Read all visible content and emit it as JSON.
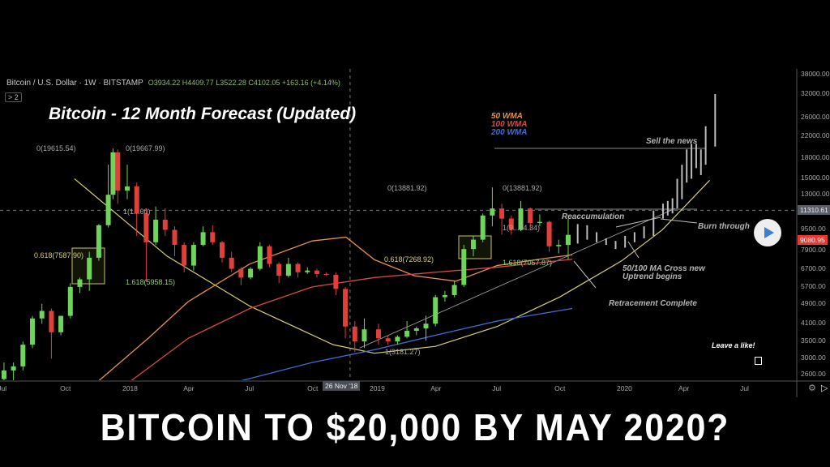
{
  "header": {
    "symbol": "Bitcoin / U.S. Dollar · 1W · BITSTAMP",
    "ohlc": "O3934.22 H4409.77 L3522.28 C4102.05 +163.16 (+4.14%)",
    "indicators_badge": "> 2"
  },
  "overlay": {
    "title": "Bitcoin - 12 Month Forecast (Updated)",
    "caption": "BITCOIN TO $20,000 BY MAY 2020?",
    "like_prompt": "Leave a like!"
  },
  "chart_data": {
    "type": "candlestick",
    "title": "Bitcoin - 12 Month Forecast (Updated)",
    "y_scale": "log",
    "ylim": [
      2400,
      38000
    ],
    "xlim": [
      "2017-07-01",
      "2020-08-15"
    ],
    "grid": false,
    "legend": "top-center",
    "y_ticks": [
      "38000.00",
      "32000.00",
      "26000.00",
      "22000.00",
      "18000.00",
      "15000.00",
      "13000.00",
      "9500.00",
      "7900.00",
      "6700.00",
      "5700.00",
      "4900.00",
      "4100.00",
      "3500.00",
      "3000.00",
      "2600.00"
    ],
    "y_tick_values": [
      38000,
      32000,
      26000,
      22000,
      18000,
      15000,
      13000,
      9500,
      7900,
      6700,
      5700,
      4900,
      4100,
      3500,
      3000,
      2600
    ],
    "x_ticks": [
      {
        "label": "Jul",
        "date": "2017-07-01"
      },
      {
        "label": "Oct",
        "date": "2017-10-01"
      },
      {
        "label": "2018",
        "date": "2018-01-01"
      },
      {
        "label": "Apr",
        "date": "2018-04-01"
      },
      {
        "label": "Jul",
        "date": "2018-07-01"
      },
      {
        "label": "Oct",
        "date": "2018-10-01"
      },
      {
        "label": "2019",
        "date": "2019-01-01"
      },
      {
        "label": "Apr",
        "date": "2019-04-01"
      },
      {
        "label": "Jul",
        "date": "2019-07-01"
      },
      {
        "label": "Oct",
        "date": "2019-10-01"
      },
      {
        "label": "2020",
        "date": "2020-01-01"
      },
      {
        "label": "Apr",
        "date": "2020-04-01"
      },
      {
        "label": "Jul",
        "date": "2020-07-01"
      }
    ],
    "crosshair": {
      "date_label": "26 Nov '18",
      "date": "2018-11-26",
      "price_label": "11310.61",
      "price": 11310.61
    },
    "last_price": {
      "label": "9080.95",
      "value": 9080.95,
      "color": "#e8382f"
    },
    "colors": {
      "up": "#6fd45a",
      "down": "#e0403a",
      "forecast": "#bbbbbb",
      "wma50": "#e8904a",
      "wma100": "#d84a4a",
      "wma200": "#3e6fd8",
      "curve": "#d9cf7a"
    },
    "candles": [
      [
        "2017-07-03",
        2500,
        2900,
        2300,
        2700
      ],
      [
        "2017-07-17",
        2700,
        2900,
        2000,
        2800
      ],
      [
        "2017-07-31",
        2800,
        3500,
        2700,
        3400
      ],
      [
        "2017-08-14",
        3400,
        4400,
        3300,
        4300
      ],
      [
        "2017-08-28",
        4300,
        4900,
        4100,
        4600
      ],
      [
        "2017-09-11",
        4600,
        4700,
        3000,
        3800
      ],
      [
        "2017-09-25",
        3800,
        4400,
        3700,
        4400
      ],
      [
        "2017-10-09",
        4400,
        5900,
        4300,
        5700
      ],
      [
        "2017-10-23",
        5700,
        6200,
        5400,
        6100
      ],
      [
        "2017-11-06",
        6100,
        7800,
        5500,
        7400
      ],
      [
        "2017-11-20",
        7400,
        10000,
        7200,
        9900
      ],
      [
        "2017-12-04",
        9900,
        17000,
        9700,
        13000
      ],
      [
        "2017-12-11",
        13000,
        19667.99,
        12500,
        19000
      ],
      [
        "2017-12-18",
        19000,
        19500,
        12000,
        13500
      ],
      [
        "2018-01-01",
        13500,
        17000,
        12500,
        14000
      ],
      [
        "2018-01-15",
        14000,
        14500,
        9000,
        11000
      ],
      [
        "2018-01-29",
        11000,
        11500,
        5958,
        8500
      ],
      [
        "2018-02-12",
        8500,
        11700,
        8300,
        10400
      ],
      [
        "2018-02-26",
        10400,
        11500,
        9000,
        9500
      ],
      [
        "2018-03-12",
        9500,
        9800,
        7500,
        8300
      ],
      [
        "2018-03-26",
        8300,
        8500,
        6500,
        6900
      ],
      [
        "2018-04-09",
        6900,
        8500,
        6600,
        8300
      ],
      [
        "2018-04-23",
        8300,
        9800,
        8200,
        9300
      ],
      [
        "2018-05-07",
        9300,
        9900,
        8300,
        8500
      ],
      [
        "2018-05-21",
        8500,
        8600,
        7100,
        7400
      ],
      [
        "2018-06-04",
        7400,
        7800,
        6500,
        6700
      ],
      [
        "2018-06-18",
        6700,
        6800,
        5800,
        6200
      ],
      [
        "2018-07-02",
        6200,
        6800,
        6100,
        6700
      ],
      [
        "2018-07-16",
        6700,
        8500,
        6600,
        8200
      ],
      [
        "2018-07-30",
        8200,
        8300,
        6800,
        7000
      ],
      [
        "2018-08-13",
        7000,
        7100,
        5900,
        6300
      ],
      [
        "2018-08-27",
        6300,
        7400,
        6200,
        7000
      ],
      [
        "2018-09-10",
        7000,
        7100,
        6200,
        6500
      ],
      [
        "2018-09-24",
        6500,
        6800,
        6400,
        6600
      ],
      [
        "2018-10-08",
        6600,
        6700,
        6200,
        6400
      ],
      [
        "2018-10-22",
        6400,
        6500,
        6300,
        6350
      ],
      [
        "2018-11-05",
        6350,
        6500,
        5300,
        5600
      ],
      [
        "2018-11-19",
        5600,
        5700,
        3600,
        4000
      ],
      [
        "2018-12-03",
        4000,
        4200,
        3181.27,
        3500
      ],
      [
        "2018-12-17",
        3500,
        4300,
        3300,
        3900
      ],
      [
        "2019-01-07",
        3900,
        4100,
        3400,
        3600
      ],
      [
        "2019-01-21",
        3600,
        3700,
        3400,
        3500
      ],
      [
        "2019-02-04",
        3500,
        3700,
        3400,
        3650
      ],
      [
        "2019-02-18",
        3650,
        4200,
        3600,
        3850
      ],
      [
        "2019-03-04",
        3850,
        4000,
        3700,
        3934.22
      ],
      [
        "2019-03-18",
        3934.22,
        4409.77,
        3522.28,
        4102.05
      ],
      [
        "2019-04-01",
        4102,
        5300,
        4000,
        5200
      ],
      [
        "2019-04-15",
        5200,
        5500,
        5000,
        5300
      ],
      [
        "2019-04-29",
        5300,
        6000,
        5200,
        5800
      ],
      [
        "2019-05-13",
        5800,
        8300,
        5700,
        8000
      ],
      [
        "2019-05-27",
        8000,
        9000,
        7500,
        8700
      ],
      [
        "2019-06-10",
        8700,
        11000,
        8500,
        10800
      ],
      [
        "2019-06-24",
        10800,
        13881.92,
        9800,
        11500
      ],
      [
        "2019-07-08",
        11500,
        12000,
        9100,
        10500
      ],
      [
        "2019-07-22",
        10500,
        10800,
        9100,
        9500
      ],
      [
        "2019-08-05",
        9500,
        12300,
        9400,
        11500
      ],
      [
        "2019-08-19",
        11500,
        11600,
        9500,
        10100
      ],
      [
        "2019-09-02",
        10100,
        10900,
        9800,
        10200
      ],
      [
        "2019-09-16",
        10200,
        10300,
        7800,
        8200
      ],
      [
        "2019-09-30",
        8200,
        8700,
        7700,
        8300
      ],
      [
        "2019-10-14",
        8300,
        10500,
        7300,
        9080.95
      ]
    ],
    "forecast_bars": [
      [
        "2019-10-28",
        8400,
        10000
      ],
      [
        "2019-11-11",
        8700,
        9900
      ],
      [
        "2019-11-25",
        8500,
        9300
      ],
      [
        "2019-12-09",
        8300,
        8800
      ],
      [
        "2019-12-23",
        8000,
        8600
      ],
      [
        "2020-01-06",
        8100,
        9000
      ],
      [
        "2020-01-20",
        8500,
        9300
      ],
      [
        "2020-02-03",
        8800,
        9800
      ],
      [
        "2020-02-17",
        9000,
        11300
      ],
      [
        "2020-03-02",
        10500,
        12000
      ],
      [
        "2020-03-09",
        10800,
        12300
      ],
      [
        "2020-03-16",
        11000,
        12600
      ],
      [
        "2020-03-23",
        11500,
        15000
      ],
      [
        "2020-03-30",
        12500,
        17000
      ],
      [
        "2020-04-06",
        14500,
        19500
      ],
      [
        "2020-04-13",
        15000,
        20500
      ],
      [
        "2020-04-20",
        16500,
        20500
      ],
      [
        "2020-04-27",
        15500,
        19500
      ],
      [
        "2020-05-04",
        17000,
        24000
      ],
      [
        "2020-05-18",
        20000,
        32000
      ]
    ],
    "series": [
      {
        "name": "50 WMA",
        "color": "#e8904a",
        "points": [
          [
            "2017-11-15",
            2400
          ],
          [
            "2018-02-01",
            3600
          ],
          [
            "2018-04-01",
            5000
          ],
          [
            "2018-07-01",
            7000
          ],
          [
            "2018-10-01",
            8600
          ],
          [
            "2018-11-20",
            8900
          ],
          [
            "2019-01-01",
            7268
          ],
          [
            "2019-03-01",
            6300
          ],
          [
            "2019-05-01",
            6000
          ],
          [
            "2019-07-01",
            6900
          ],
          [
            "2019-09-01",
            7300
          ],
          [
            "2019-10-20",
            7600
          ]
        ]
      },
      {
        "name": "100 WMA",
        "color": "#d84a4a",
        "points": [
          [
            "2018-01-01",
            2400
          ],
          [
            "2018-04-01",
            3600
          ],
          [
            "2018-07-01",
            4700
          ],
          [
            "2018-10-01",
            5700
          ],
          [
            "2019-01-01",
            6200
          ],
          [
            "2019-04-01",
            6500
          ],
          [
            "2019-07-01",
            6800
          ],
          [
            "2019-10-20",
            7300
          ]
        ]
      },
      {
        "name": "200 WMA",
        "color": "#3e6fd8",
        "points": [
          [
            "2018-06-15",
            2450
          ],
          [
            "2018-10-01",
            2900
          ],
          [
            "2019-01-01",
            3250
          ],
          [
            "2019-04-01",
            3700
          ],
          [
            "2019-07-01",
            4200
          ],
          [
            "2019-10-20",
            4700
          ]
        ]
      }
    ],
    "support_curve": [
      [
        "2017-10-15",
        15000
      ],
      [
        "2018-03-01",
        7500
      ],
      [
        "2018-07-01",
        4800
      ],
      [
        "2018-11-01",
        3400
      ],
      [
        "2019-01-01",
        3150
      ],
      [
        "2019-04-01",
        3350
      ],
      [
        "2019-07-01",
        4000
      ],
      [
        "2019-10-01",
        5200
      ],
      [
        "2020-01-01",
        7200
      ],
      [
        "2020-03-01",
        9500
      ],
      [
        "2020-05-10",
        14800
      ]
    ],
    "fib_labels": [
      "0(19615.54)",
      "0(19667.99)",
      "0.618(7587.90)",
      "1.618(5958.15)",
      "1(1...60)",
      "0(13881.92)",
      "0.618(7268.92)",
      "1.618(7057.87)",
      "1(3181.27)",
      "1(9...64.34)"
    ],
    "annotations": [
      "Sell the news",
      "Reaccumulation",
      "Burn through",
      "50/100 MA Cross new",
      "Uptrend begins",
      "Retracement Complete"
    ]
  }
}
